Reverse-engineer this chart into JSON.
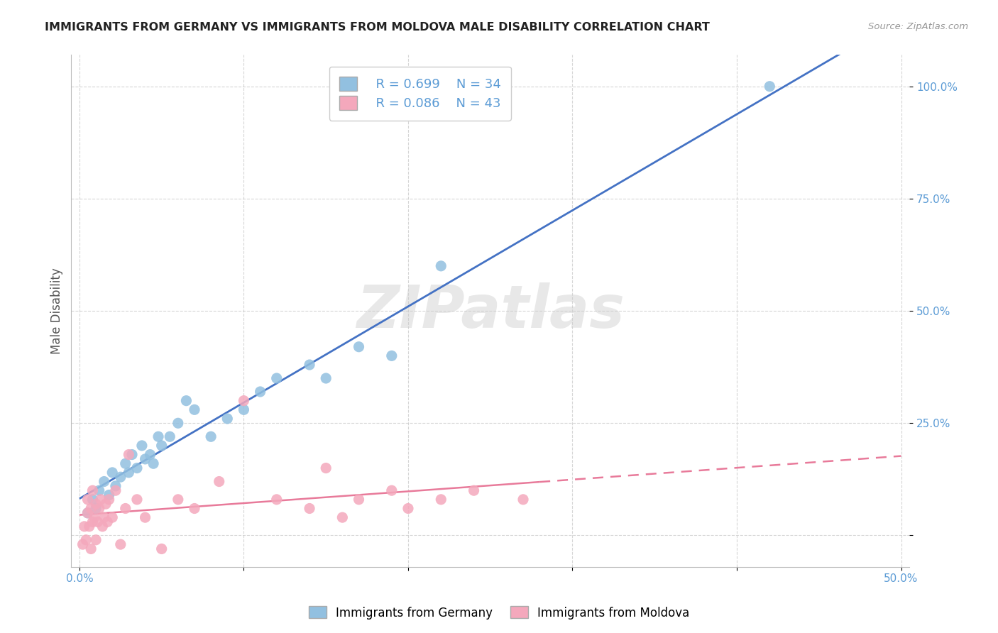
{
  "title": "IMMIGRANTS FROM GERMANY VS IMMIGRANTS FROM MOLDOVA MALE DISABILITY CORRELATION CHART",
  "source": "Source: ZipAtlas.com",
  "xlabel": "",
  "ylabel": "Male Disability",
  "xlim": [
    -0.005,
    0.505
  ],
  "ylim": [
    -0.07,
    1.07
  ],
  "x_ticks": [
    0.0,
    0.1,
    0.2,
    0.3,
    0.4,
    0.5
  ],
  "x_tick_labels": [
    "0.0%",
    "",
    "",
    "",
    "",
    "50.0%"
  ],
  "y_ticks": [
    0.0,
    0.25,
    0.5,
    0.75,
    1.0
  ],
  "y_tick_labels": [
    "",
    "25.0%",
    "50.0%",
    "75.0%",
    "100.0%"
  ],
  "germany_color": "#92C0E0",
  "moldova_color": "#F4A8BC",
  "germany_line_color": "#4472C4",
  "moldova_line_color": "#E87A9A",
  "R_germany": 0.699,
  "N_germany": 34,
  "R_moldova": 0.086,
  "N_moldova": 43,
  "watermark": "ZIPatlas",
  "germany_scatter_x": [
    0.005,
    0.008,
    0.01,
    0.012,
    0.015,
    0.018,
    0.02,
    0.022,
    0.025,
    0.028,
    0.03,
    0.032,
    0.035,
    0.038,
    0.04,
    0.043,
    0.045,
    0.048,
    0.05,
    0.055,
    0.06,
    0.065,
    0.07,
    0.08,
    0.09,
    0.1,
    0.11,
    0.12,
    0.14,
    0.15,
    0.17,
    0.19,
    0.22,
    0.42
  ],
  "germany_scatter_y": [
    0.05,
    0.08,
    0.06,
    0.1,
    0.12,
    0.09,
    0.14,
    0.11,
    0.13,
    0.16,
    0.14,
    0.18,
    0.15,
    0.2,
    0.17,
    0.18,
    0.16,
    0.22,
    0.2,
    0.22,
    0.25,
    0.3,
    0.28,
    0.22,
    0.26,
    0.28,
    0.32,
    0.35,
    0.38,
    0.35,
    0.42,
    0.4,
    0.6,
    1.0
  ],
  "moldova_scatter_x": [
    0.002,
    0.003,
    0.004,
    0.005,
    0.005,
    0.006,
    0.007,
    0.007,
    0.008,
    0.008,
    0.009,
    0.01,
    0.01,
    0.011,
    0.012,
    0.013,
    0.014,
    0.015,
    0.016,
    0.017,
    0.018,
    0.02,
    0.022,
    0.025,
    0.028,
    0.03,
    0.035,
    0.04,
    0.05,
    0.06,
    0.07,
    0.085,
    0.1,
    0.12,
    0.14,
    0.15,
    0.16,
    0.17,
    0.19,
    0.2,
    0.22,
    0.24,
    0.27
  ],
  "moldova_scatter_y": [
    -0.02,
    0.02,
    -0.01,
    0.05,
    0.08,
    0.02,
    -0.03,
    0.06,
    0.03,
    0.1,
    0.04,
    -0.01,
    0.07,
    0.03,
    0.06,
    0.08,
    0.02,
    0.04,
    0.07,
    0.03,
    0.08,
    0.04,
    0.1,
    -0.02,
    0.06,
    0.18,
    0.08,
    0.04,
    -0.03,
    0.08,
    0.06,
    0.12,
    0.3,
    0.08,
    0.06,
    0.15,
    0.04,
    0.08,
    0.1,
    0.06,
    0.08,
    0.1,
    0.08
  ]
}
